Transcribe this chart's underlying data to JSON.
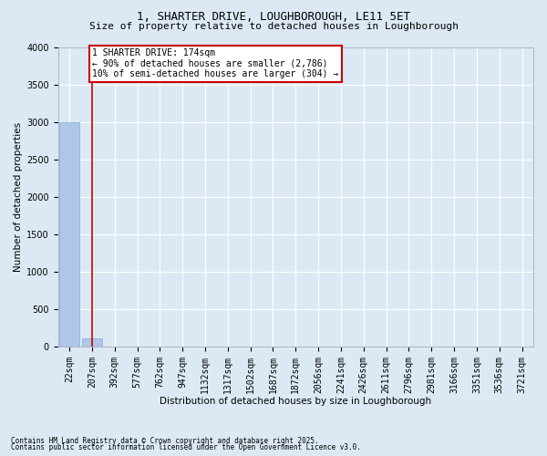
{
  "title1": "1, SHARTER DRIVE, LOUGHBOROUGH, LE11 5ET",
  "title2": "Size of property relative to detached houses in Loughborough",
  "xlabel": "Distribution of detached houses by size in Loughborough",
  "ylabel": "Number of detached properties",
  "footnote1": "Contains HM Land Registry data © Crown copyright and database right 2025.",
  "footnote2": "Contains public sector information licensed under the Open Government Licence v3.0.",
  "annotation_line1": "1 SHARTER DRIVE: 174sqm",
  "annotation_line2": "← 90% of detached houses are smaller (2,786)",
  "annotation_line3": "10% of semi-detached houses are larger (304) →",
  "bar_labels": [
    "22sqm",
    "207sqm",
    "392sqm",
    "577sqm",
    "762sqm",
    "947sqm",
    "1132sqm",
    "1317sqm",
    "1502sqm",
    "1687sqm",
    "1872sqm",
    "2056sqm",
    "2241sqm",
    "2426sqm",
    "2611sqm",
    "2796sqm",
    "2981sqm",
    "3166sqm",
    "3351sqm",
    "3536sqm",
    "3721sqm"
  ],
  "bar_values": [
    3000,
    110,
    0,
    0,
    0,
    0,
    0,
    0,
    0,
    0,
    0,
    0,
    0,
    0,
    0,
    0,
    0,
    0,
    0,
    0,
    0
  ],
  "bar_color": "#aec6e8",
  "bar_edge_color": "#7fafd4",
  "red_line_x": 1.0,
  "ylim": [
    0,
    4000
  ],
  "yticks": [
    0,
    500,
    1000,
    1500,
    2000,
    2500,
    3000,
    3500,
    4000
  ],
  "bg_color": "#dce9f5",
  "plot_bg_color": "#dce9f5",
  "grid_color": "#ffffff",
  "annotation_box_color": "#cc0000",
  "property_line_color": "#cc0000",
  "title1_fontsize": 9,
  "title2_fontsize": 8,
  "ylabel_fontsize": 7.5,
  "xlabel_fontsize": 7.5,
  "tick_fontsize": 7,
  "annotation_fontsize": 7
}
